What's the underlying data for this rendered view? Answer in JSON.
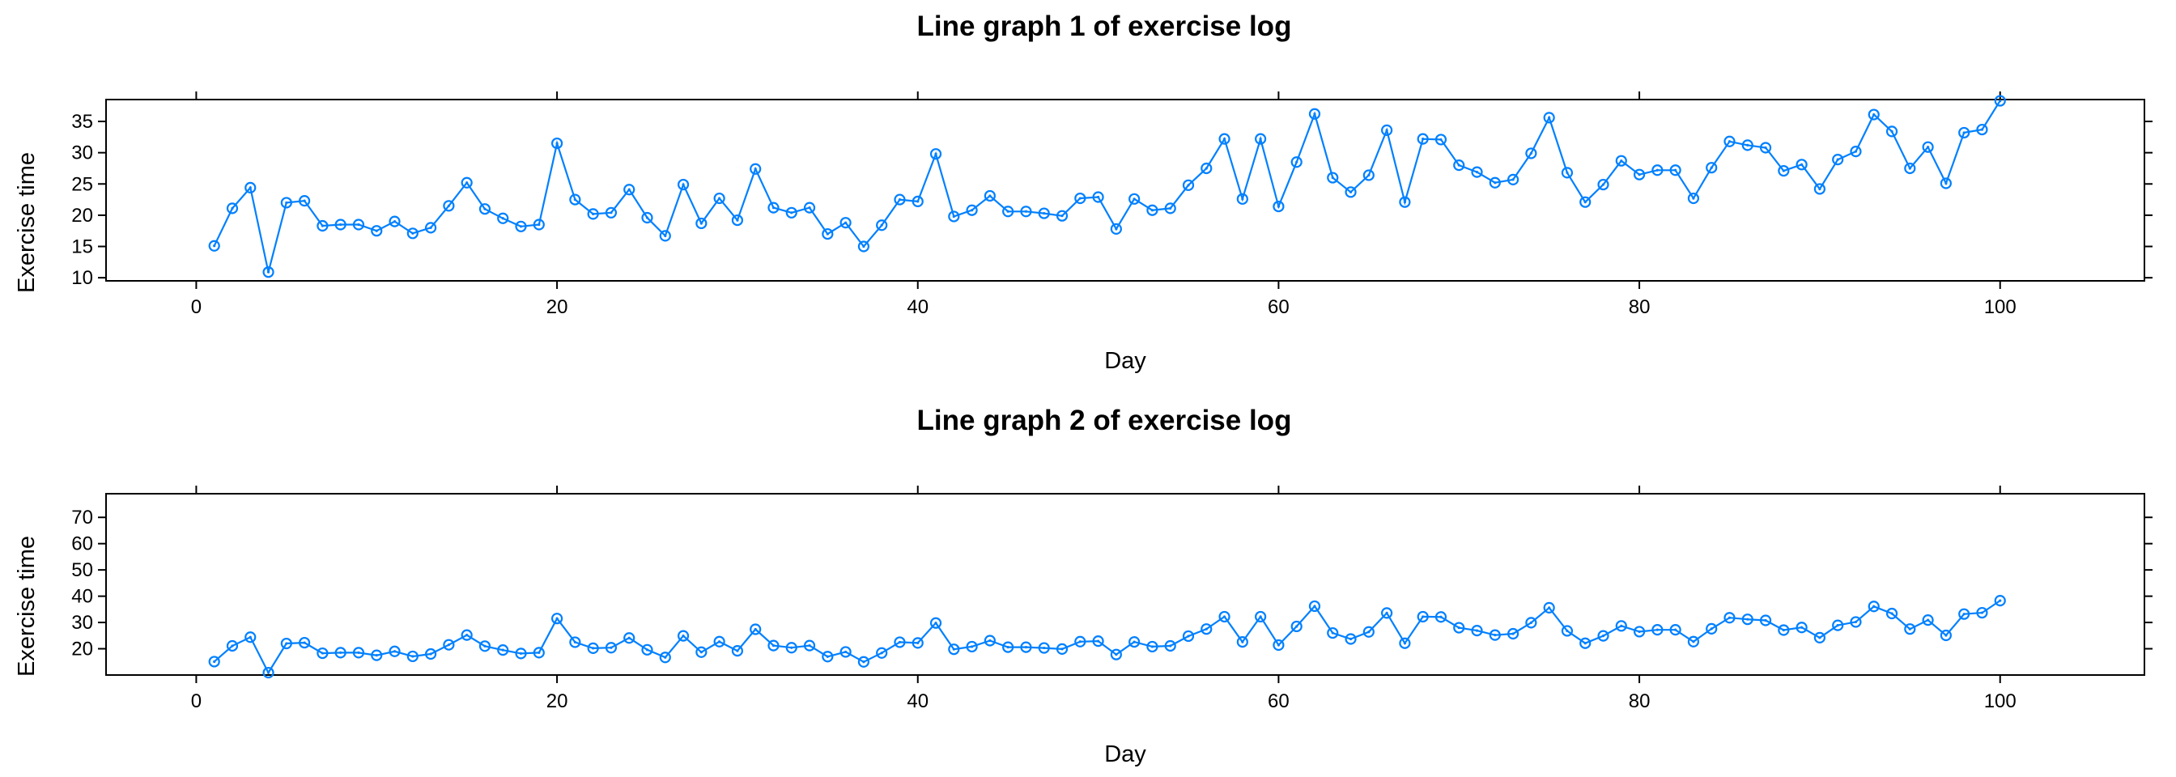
{
  "chart_data": [
    {
      "type": "line",
      "title": "Line graph 1 of exercise log",
      "xlabel": "Day",
      "ylabel": "Exercise time",
      "xlim": [
        -5,
        108
      ],
      "ylim": [
        9.5,
        38.5
      ],
      "xticks": [
        0,
        20,
        40,
        60,
        80,
        100
      ],
      "yticks": [
        10,
        15,
        20,
        25,
        30,
        35
      ],
      "grid": false,
      "series_color": "#0080ff",
      "x": [
        1,
        2,
        3,
        4,
        5,
        6,
        7,
        8,
        9,
        10,
        11,
        12,
        13,
        14,
        15,
        16,
        17,
        18,
        19,
        20,
        21,
        22,
        23,
        24,
        25,
        26,
        27,
        28,
        29,
        30,
        31,
        32,
        33,
        34,
        35,
        36,
        37,
        38,
        39,
        40,
        41,
        42,
        43,
        44,
        45,
        46,
        47,
        48,
        49,
        50,
        51,
        52,
        53,
        54,
        55,
        56,
        57,
        58,
        59,
        60,
        61,
        62,
        63,
        64,
        65,
        66,
        67,
        68,
        69,
        70,
        71,
        72,
        73,
        74,
        75,
        76,
        77,
        78,
        79,
        80,
        81,
        82,
        83,
        84,
        85,
        86,
        87,
        88,
        89,
        90,
        91,
        92,
        93,
        94,
        95,
        96,
        97,
        98,
        99,
        100
      ],
      "values": [
        15.1,
        21.1,
        24.4,
        10.9,
        22.0,
        22.3,
        18.3,
        18.5,
        18.5,
        17.5,
        19.0,
        17.1,
        18.0,
        21.5,
        25.2,
        21.0,
        19.5,
        18.2,
        18.5,
        31.5,
        22.5,
        20.2,
        20.4,
        24.1,
        19.6,
        16.7,
        24.9,
        18.7,
        22.7,
        19.2,
        27.4,
        21.2,
        20.4,
        21.2,
        17.0,
        18.8,
        15.0,
        18.4,
        22.5,
        22.2,
        29.8,
        19.8,
        20.8,
        23.1,
        20.6,
        20.6,
        20.3,
        19.9,
        22.7,
        22.9,
        17.8,
        22.6,
        20.8,
        21.1,
        24.8,
        27.5,
        32.2,
        22.6,
        32.2,
        21.4,
        28.5,
        36.2,
        26.0,
        23.7,
        26.4,
        33.6,
        22.1,
        32.2,
        32.1,
        28.0,
        26.9,
        25.2,
        25.7,
        29.9,
        35.6,
        26.8,
        22.1,
        24.9,
        28.7,
        26.5,
        27.2,
        27.2,
        22.7,
        27.6,
        31.8,
        31.2,
        30.8,
        27.1,
        28.1,
        24.2,
        28.9,
        30.2,
        36.1,
        33.4,
        27.5,
        30.9,
        25.1,
        33.2,
        33.7,
        38.3
      ]
    },
    {
      "type": "line",
      "title": "Line graph 2 of exercise log",
      "xlabel": "Day",
      "ylabel": "Exercise time",
      "xlim": [
        -5,
        108
      ],
      "ylim": [
        10,
        79
      ],
      "xticks": [
        0,
        20,
        40,
        60,
        80,
        100
      ],
      "yticks": [
        20,
        30,
        40,
        50,
        60,
        70
      ],
      "grid": false,
      "series_color": "#0080ff",
      "x": [
        1,
        2,
        3,
        4,
        5,
        6,
        7,
        8,
        9,
        10,
        11,
        12,
        13,
        14,
        15,
        16,
        17,
        18,
        19,
        20,
        21,
        22,
        23,
        24,
        25,
        26,
        27,
        28,
        29,
        30,
        31,
        32,
        33,
        34,
        35,
        36,
        37,
        38,
        39,
        40,
        41,
        42,
        43,
        44,
        45,
        46,
        47,
        48,
        49,
        50,
        51,
        52,
        53,
        54,
        55,
        56,
        57,
        58,
        59,
        60,
        61,
        62,
        63,
        64,
        65,
        66,
        67,
        68,
        69,
        70,
        71,
        72,
        73,
        74,
        75,
        76,
        77,
        78,
        79,
        80,
        81,
        82,
        83,
        84,
        85,
        86,
        87,
        88,
        89,
        90,
        91,
        92,
        93,
        94,
        95,
        96,
        97,
        98,
        99,
        100
      ],
      "values": [
        15.1,
        21.1,
        24.4,
        10.9,
        22.0,
        22.3,
        18.3,
        18.5,
        18.5,
        17.5,
        19.0,
        17.1,
        18.0,
        21.5,
        25.2,
        21.0,
        19.5,
        18.2,
        18.5,
        31.5,
        22.5,
        20.2,
        20.4,
        24.1,
        19.6,
        16.7,
        24.9,
        18.7,
        22.7,
        19.2,
        27.4,
        21.2,
        20.4,
        21.2,
        17.0,
        18.8,
        15.0,
        18.4,
        22.5,
        22.2,
        29.8,
        19.8,
        20.8,
        23.1,
        20.6,
        20.6,
        20.3,
        19.9,
        22.7,
        22.9,
        17.8,
        22.6,
        20.8,
        21.1,
        24.8,
        27.5,
        32.2,
        22.6,
        32.2,
        21.4,
        28.5,
        36.2,
        26.0,
        23.7,
        26.4,
        33.6,
        22.1,
        32.2,
        32.1,
        28.0,
        26.9,
        25.2,
        25.7,
        29.9,
        35.6,
        26.8,
        22.1,
        24.9,
        28.7,
        26.5,
        27.2,
        27.2,
        22.7,
        27.6,
        31.8,
        31.2,
        30.8,
        27.1,
        28.1,
        24.2,
        28.9,
        30.2,
        36.1,
        33.4,
        27.5,
        30.9,
        25.1,
        33.2,
        33.7,
        38.3
      ]
    }
  ]
}
